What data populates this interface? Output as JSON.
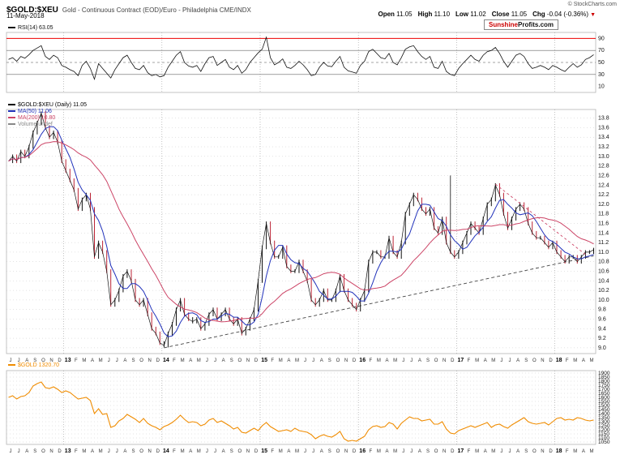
{
  "header": {
    "symbol": "$GOLD:$XEU",
    "description": "Gold - Continuous Contract (EOD)/Euro - Philadelphia CME/INDX",
    "date": "11-May-2018",
    "copyright": "© StockCharts.com",
    "quote": [
      {
        "label": "Open",
        "value": "11.05"
      },
      {
        "label": "High",
        "value": "11.10"
      },
      {
        "label": "Low",
        "value": "11.02"
      },
      {
        "label": "Close",
        "value": "11.05"
      },
      {
        "label": "Chg",
        "value": "-0.04 (-0.36%)"
      }
    ],
    "change_direction": "down",
    "watermark": {
      "part1": "Sunshine",
      "part2": "Profits.com"
    }
  },
  "colors": {
    "rsi_line": "#111111",
    "rsi_overbought_line": "#ee0000",
    "price_up": "#111111",
    "price_down": "#bb2233",
    "ma50": "#2233bb",
    "ma200": "#cc4466",
    "gold_line": "#f08c00",
    "trendline": "#444444",
    "grid": "#c8c8c8",
    "year_grid": "#999999",
    "panel_border": "#aaaaaa",
    "watermark_red": "#cc0000",
    "watermark_dark": "#111111",
    "change_down": "#cc0000"
  },
  "chart_data": {
    "type": "multi-panel",
    "x_axis": {
      "labels": [
        "J",
        "J",
        "A",
        "S",
        "O",
        "N",
        "D",
        "13",
        "F",
        "M",
        "A",
        "M",
        "J",
        "J",
        "A",
        "S",
        "O",
        "N",
        "D",
        "14",
        "F",
        "M",
        "A",
        "M",
        "J",
        "J",
        "A",
        "S",
        "O",
        "N",
        "D",
        "15",
        "F",
        "M",
        "A",
        "M",
        "J",
        "J",
        "A",
        "S",
        "O",
        "N",
        "D",
        "16",
        "F",
        "M",
        "A",
        "M",
        "J",
        "J",
        "A",
        "S",
        "O",
        "N",
        "D",
        "17",
        "F",
        "M",
        "A",
        "M",
        "J",
        "J",
        "A",
        "S",
        "O",
        "N",
        "D",
        "18",
        "F",
        "M",
        "A",
        "M"
      ],
      "year_indices": [
        7,
        19,
        31,
        43,
        55,
        67
      ]
    },
    "panels": [
      {
        "name": "rsi",
        "type": "line",
        "title": "RSI(14) 63.05",
        "ylim": [
          0,
          100
        ],
        "yticks": [
          90,
          70,
          50,
          30,
          10
        ],
        "hlines": [
          {
            "value": 90,
            "color": "#ee0000",
            "style": "solid"
          },
          {
            "value": 70,
            "color": "#666666",
            "style": "solid"
          },
          {
            "value": 50,
            "color": "#888888",
            "style": "dashed"
          },
          {
            "value": 30,
            "color": "#666666",
            "style": "solid"
          }
        ],
        "values": [
          55,
          58,
          52,
          60,
          57,
          63,
          70,
          74,
          78,
          60,
          55,
          62,
          58,
          45,
          42,
          38,
          35,
          28,
          45,
          52,
          40,
          22,
          48,
          40,
          32,
          24,
          38,
          48,
          58,
          62,
          50,
          40,
          38,
          45,
          33,
          28,
          30,
          26,
          28,
          42,
          52,
          62,
          68,
          50,
          44,
          42,
          45,
          35,
          48,
          58,
          60,
          45,
          50,
          55,
          42,
          38,
          45,
          32,
          38,
          50,
          58,
          66,
          72,
          92,
          58,
          46,
          50,
          56,
          42,
          40,
          45,
          52,
          46,
          38,
          28,
          30,
          42,
          50,
          44,
          43,
          52,
          60,
          42,
          36,
          34,
          32,
          45,
          52,
          68,
          72,
          65,
          58,
          56,
          65,
          50,
          46,
          58,
          72,
          76,
          78,
          68,
          60,
          55,
          60,
          42,
          40,
          52,
          35,
          30,
          28,
          40,
          48,
          55,
          62,
          55,
          52,
          62,
          68,
          70,
          75,
          65,
          52,
          42,
          52,
          62,
          65,
          60,
          48,
          40,
          42,
          45,
          42,
          38,
          45,
          42,
          38,
          35,
          42,
          48,
          42,
          46,
          55,
          58,
          63
        ]
      },
      {
        "name": "price",
        "type": "candlestick",
        "title": "$GOLD:$XEU (Daily) 11.05",
        "legend": [
          {
            "text": "$GOLD:$XEU (Daily) 11.05",
            "color": "#000000"
          },
          {
            "text": "MA(50) 11.06",
            "color": "#2233bb"
          },
          {
            "text": "MA(200) 10.80",
            "color": "#cc4466"
          },
          {
            "text": "Volume undef",
            "color": "#888888"
          }
        ],
        "ylim": [
          8.88,
          13.98
        ],
        "yticks": [
          13.8,
          13.6,
          13.4,
          13.2,
          13.0,
          12.8,
          12.6,
          12.4,
          12.2,
          12.0,
          11.8,
          11.6,
          11.4,
          11.2,
          11.0,
          10.8,
          10.6,
          10.4,
          10.2,
          10.0,
          9.8,
          9.6,
          9.4,
          9.2,
          9.0
        ],
        "ma50_window": 5,
        "ma200_window": 19,
        "closes": [
          12.9,
          13.0,
          12.9,
          13.1,
          13.0,
          13.2,
          13.5,
          13.7,
          13.9,
          13.6,
          13.4,
          13.5,
          13.3,
          12.9,
          12.7,
          12.5,
          12.3,
          11.9,
          12.1,
          12.2,
          11.9,
          10.9,
          11.2,
          11.0,
          10.6,
          9.9,
          10.0,
          10.2,
          10.5,
          10.6,
          10.4,
          10.0,
          9.9,
          10.0,
          9.7,
          9.4,
          9.3,
          9.1,
          9.05,
          9.3,
          9.5,
          9.8,
          10.0,
          9.7,
          9.6,
          9.55,
          9.6,
          9.4,
          9.5,
          9.7,
          9.8,
          9.6,
          9.7,
          9.8,
          9.6,
          9.5,
          9.6,
          9.3,
          9.4,
          9.6,
          9.8,
          10.4,
          11.1,
          11.6,
          11.2,
          10.9,
          10.9,
          11.1,
          10.7,
          10.6,
          10.6,
          10.8,
          10.6,
          10.4,
          10.0,
          9.9,
          10.0,
          10.2,
          10.0,
          10.0,
          10.2,
          10.5,
          10.2,
          10.0,
          9.9,
          9.8,
          10.0,
          10.2,
          10.8,
          11.0,
          11.0,
          10.9,
          10.9,
          11.3,
          11.0,
          10.9,
          11.2,
          11.8,
          12.0,
          12.2,
          12.1,
          11.9,
          11.8,
          11.9,
          11.5,
          11.4,
          11.7,
          11.2,
          11.0,
          10.9,
          11.0,
          11.2,
          11.4,
          11.6,
          11.5,
          11.4,
          11.7,
          12.0,
          12.1,
          12.4,
          12.2,
          11.8,
          11.5,
          11.7,
          11.9,
          12.0,
          11.9,
          11.6,
          11.4,
          11.3,
          11.3,
          11.2,
          11.1,
          11.2,
          11.0,
          10.9,
          10.8,
          10.9,
          10.9,
          10.8,
          10.9,
          11.0,
          11.0,
          11.05
        ],
        "spike_wicks": [
          {
            "index": 108,
            "high": 12.6
          }
        ],
        "trendline": {
          "from_index": 38,
          "from_value": 9.0,
          "to_index": 143,
          "to_value": 10.92,
          "style": "dashed",
          "color": "#444444"
        },
        "resistance_line": {
          "from_index": 119,
          "from_value": 12.42,
          "to_index": 141,
          "to_value": 10.95,
          "style": "dashed",
          "color": "#cc4466"
        }
      },
      {
        "name": "gold",
        "type": "line",
        "title": "$GOLD 1320.70",
        "ylim": [
          1020,
          1930
        ],
        "yticks": [
          1900,
          1850,
          1800,
          1750,
          1700,
          1650,
          1600,
          1550,
          1500,
          1450,
          1400,
          1350,
          1300,
          1250,
          1200,
          1150,
          1100,
          1050
        ],
        "values": [
          1600,
          1620,
          1580,
          1610,
          1620,
          1660,
          1740,
          1770,
          1790,
          1720,
          1710,
          1730,
          1700,
          1660,
          1680,
          1660,
          1620,
          1580,
          1590,
          1600,
          1560,
          1400,
          1460,
          1390,
          1400,
          1230,
          1250,
          1310,
          1340,
          1390,
          1360,
          1330,
          1290,
          1340,
          1280,
          1250,
          1230,
          1200,
          1240,
          1260,
          1290,
          1330,
          1380,
          1330,
          1290,
          1300,
          1290,
          1250,
          1270,
          1320,
          1340,
          1290,
          1310,
          1280,
          1250,
          1210,
          1230,
          1170,
          1160,
          1190,
          1220,
          1190,
          1250,
          1290,
          1240,
          1210,
          1180,
          1190,
          1200,
          1180,
          1220,
          1190,
          1180,
          1170,
          1140,
          1090,
          1120,
          1140,
          1120,
          1110,
          1140,
          1180,
          1090,
          1060,
          1070,
          1060,
          1090,
          1120,
          1200,
          1240,
          1250,
          1230,
          1240,
          1290,
          1270,
          1210,
          1280,
          1320,
          1360,
          1340,
          1340,
          1310,
          1320,
          1330,
          1270,
          1270,
          1300,
          1210,
          1160,
          1150,
          1190,
          1210,
          1230,
          1250,
          1230,
          1250,
          1270,
          1290,
          1230,
          1260,
          1270,
          1240,
          1220,
          1260,
          1290,
          1320,
          1350,
          1300,
          1280,
          1270,
          1280,
          1290,
          1260,
          1300,
          1340,
          1350,
          1320,
          1330,
          1320,
          1350,
          1340,
          1320,
          1310,
          1320.7
        ]
      }
    ]
  }
}
